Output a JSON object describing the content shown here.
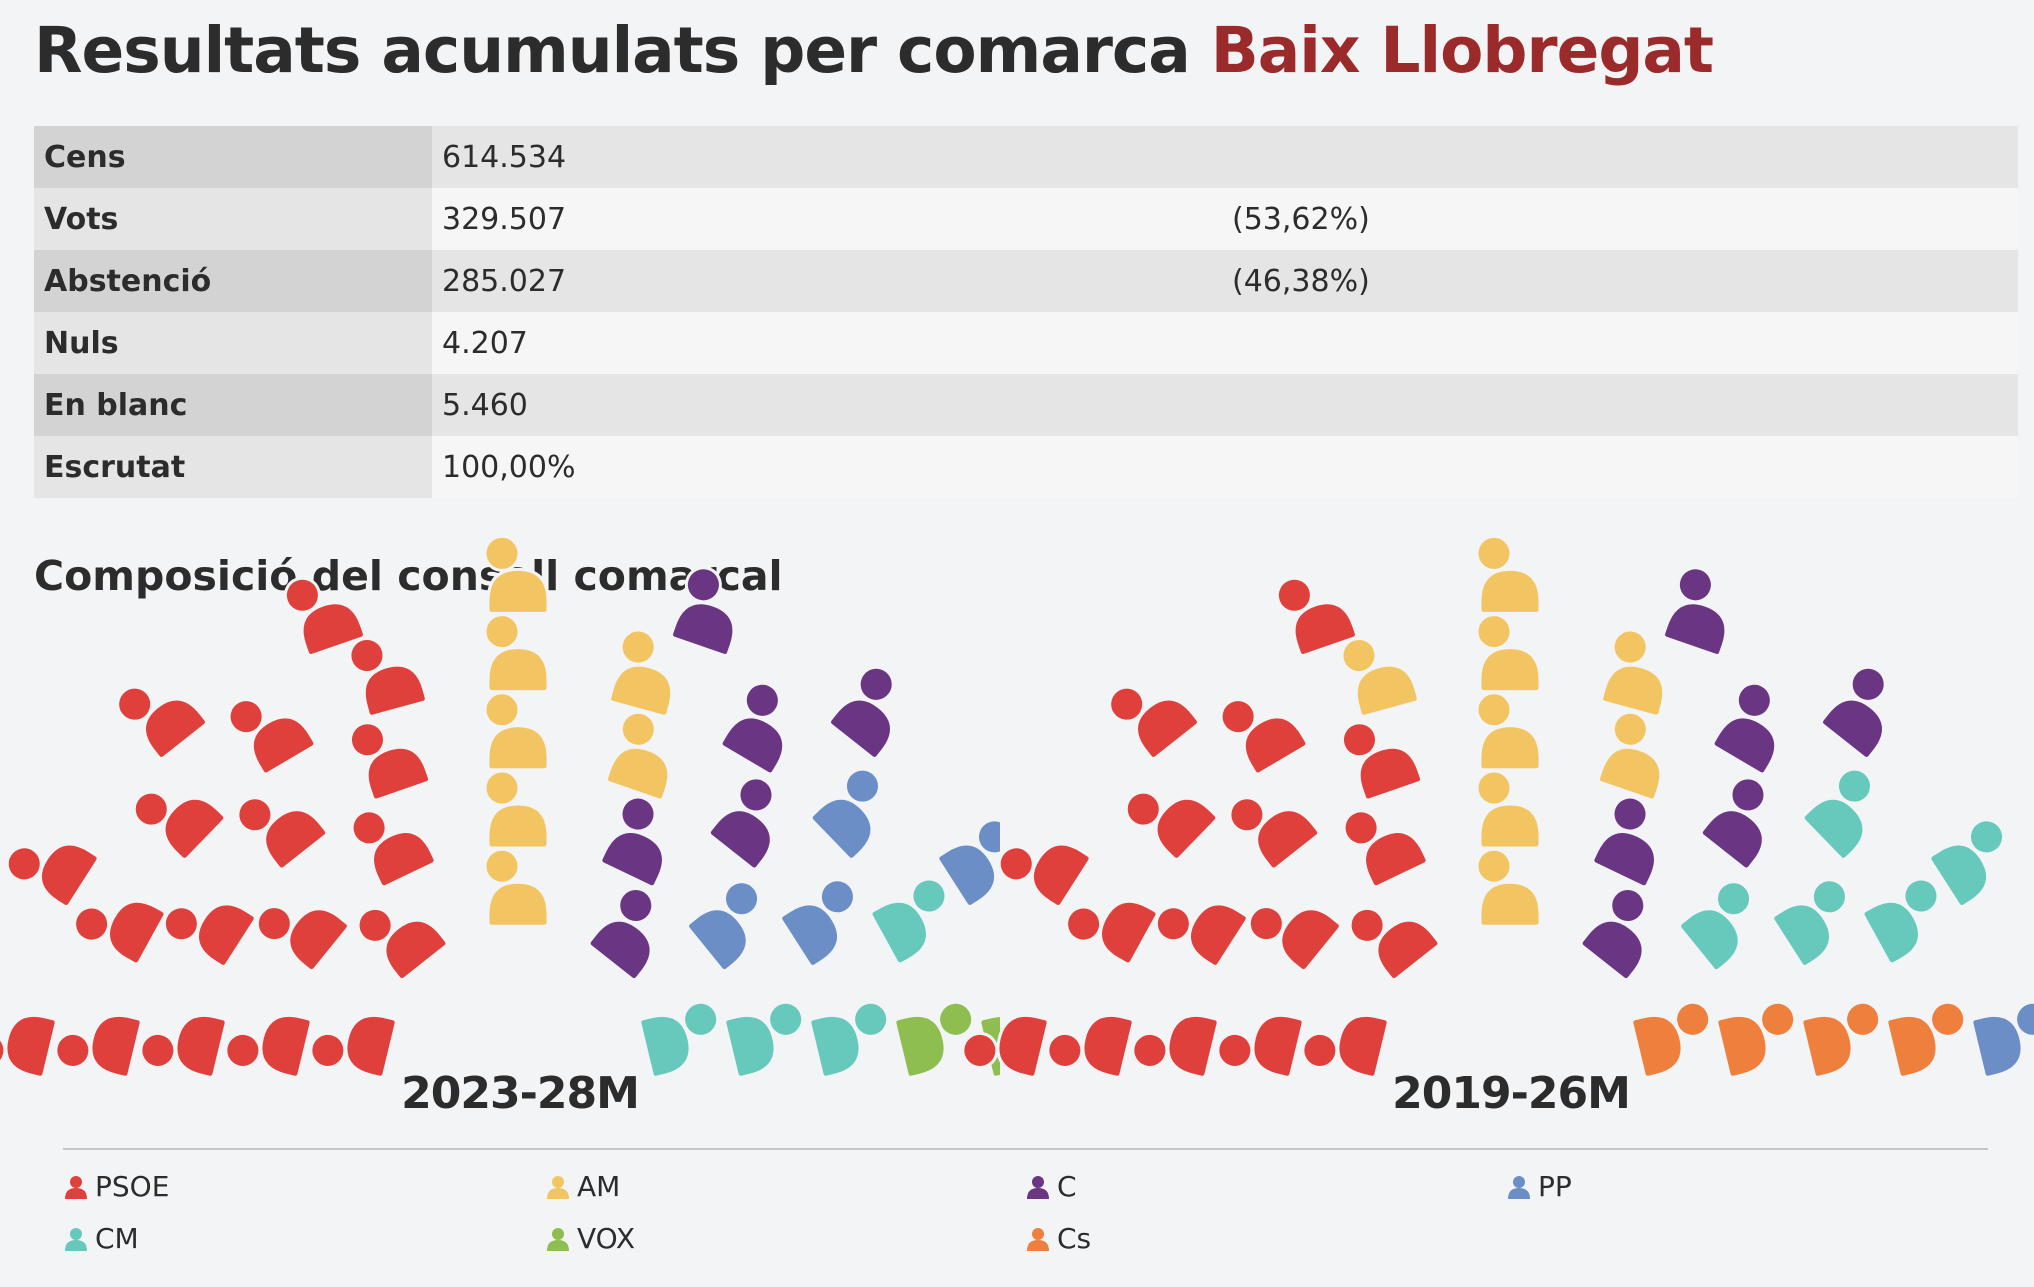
{
  "header": {
    "title_main": "Resultats acumulats per comarca",
    "title_place": "Baix Llobregat",
    "subtitle": "Composició del consell comarcal"
  },
  "stats": [
    {
      "label": "Cens",
      "value": "614.534",
      "pct": ""
    },
    {
      "label": "Vots",
      "value": "329.507",
      "pct": "(53,62%)"
    },
    {
      "label": "Abstenció",
      "value": "285.027",
      "pct": "(46,38%)"
    },
    {
      "label": "Nuls",
      "value": "4.207",
      "pct": ""
    },
    {
      "label": "En blanc",
      "value": "5.460",
      "pct": ""
    },
    {
      "label": "Escrutat",
      "value": "100,00%",
      "pct": ""
    }
  ],
  "colors": {
    "PSOE": "#e0403c",
    "AM": "#f3c562",
    "C": "#6a3583",
    "PP": "#6b8ec7",
    "CM": "#66c9bc",
    "VOX": "#8fbe50",
    "Cs": "#ee7f3c"
  },
  "chart_data": [
    {
      "type": "hemicycle",
      "title": "2023-28M",
      "seats_total": 41,
      "parties": [
        {
          "name": "PSOE",
          "seats": 18
        },
        {
          "name": "AM",
          "seats": 7
        },
        {
          "name": "C",
          "seats": 6
        },
        {
          "name": "PP",
          "seats": 4
        },
        {
          "name": "CM",
          "seats": 4
        },
        {
          "name": "VOX",
          "seats": 2
        }
      ]
    },
    {
      "type": "hemicycle",
      "title": "2019-26M",
      "seats_total": 41,
      "parties": [
        {
          "name": "PSOE",
          "seats": 17
        },
        {
          "name": "AM",
          "seats": 8
        },
        {
          "name": "C",
          "seats": 6
        },
        {
          "name": "CM",
          "seats": 5
        },
        {
          "name": "Cs",
          "seats": 4
        },
        {
          "name": "PP",
          "seats": 1
        }
      ]
    }
  ],
  "legend": [
    "PSOE",
    "AM",
    "C",
    "PP",
    "CM",
    "VOX",
    "Cs"
  ]
}
